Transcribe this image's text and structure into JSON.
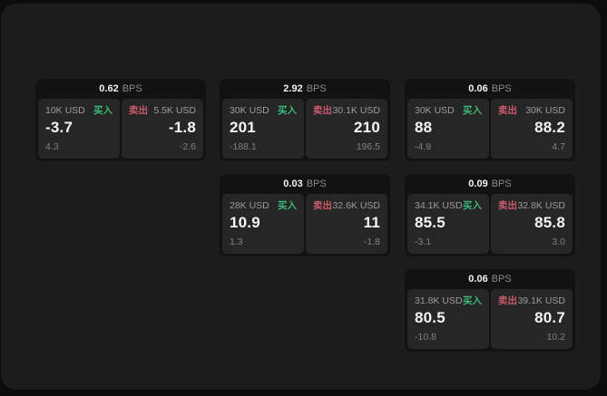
{
  "labels": {
    "bps_unit": "BPS",
    "buy": "买入",
    "sell": "卖出"
  },
  "colors": {
    "page_background": "#0c0c0c",
    "window_background": "#1c1c1c",
    "card_background": "#121212",
    "panel_background": "#262626",
    "buy_green": "#3cb878",
    "sell_red": "#cc5a6c",
    "value_white": "#f5f5f5",
    "label_gray": "#9c9c9c"
  },
  "cards": [
    {
      "bps": "0.62",
      "buy": {
        "amount": "10K USD",
        "price": "-3.7",
        "delta": "4.3"
      },
      "sell": {
        "amount": "5.5K USD",
        "price": "-1.8",
        "delta": "-2.6"
      }
    },
    {
      "bps": "2.92",
      "buy": {
        "amount": "30K USD",
        "price": "201",
        "delta": "-188.1"
      },
      "sell": {
        "amount": "30.1K USD",
        "price": "210",
        "delta": "196.5"
      }
    },
    {
      "bps": "0.06",
      "buy": {
        "amount": "30K USD",
        "price": "88",
        "delta": "-4.9"
      },
      "sell": {
        "amount": "30K USD",
        "price": "88.2",
        "delta": "4.7"
      }
    },
    {
      "bps": "0.03",
      "buy": {
        "amount": "28K USD",
        "price": "10.9",
        "delta": "1.3"
      },
      "sell": {
        "amount": "32.6K USD",
        "price": "11",
        "delta": "-1.8"
      }
    },
    {
      "bps": "0.09",
      "buy": {
        "amount": "34.1K USD",
        "price": "85.5",
        "delta": "-3.1"
      },
      "sell": {
        "amount": "32.8K USD",
        "price": "85.8",
        "delta": "3.0"
      }
    },
    {
      "bps": "0.06",
      "buy": {
        "amount": "31.8K USD",
        "price": "80.5",
        "delta": "-10.8"
      },
      "sell": {
        "amount": "39.1K USD",
        "price": "80.7",
        "delta": "10.2"
      }
    }
  ]
}
